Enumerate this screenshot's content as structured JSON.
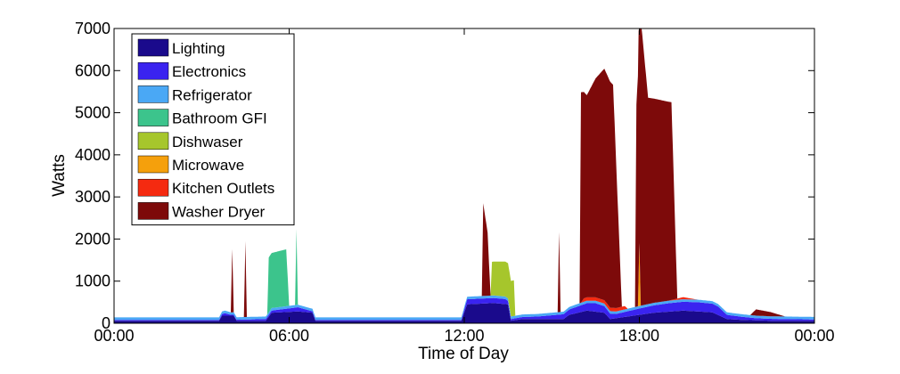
{
  "chart_data": {
    "type": "area",
    "stacked": true,
    "title": "",
    "xlabel": "Time of Day",
    "ylabel": "Watts",
    "x_unit": "hours",
    "xlim": [
      0,
      24
    ],
    "ylim": [
      0,
      7000
    ],
    "x_ticks": [
      {
        "value": 0,
        "label": "00:00"
      },
      {
        "value": 6,
        "label": "06:00"
      },
      {
        "value": 12,
        "label": "12:00"
      },
      {
        "value": 18,
        "label": "18:00"
      },
      {
        "value": 24,
        "label": "00:00"
      }
    ],
    "y_ticks": [
      0,
      1000,
      2000,
      3000,
      4000,
      5000,
      6000,
      7000
    ],
    "grid": false,
    "legend_position": "top-left",
    "series": [
      {
        "name": "Lighting",
        "color": "#1a0a8c",
        "points": [
          [
            0,
            60
          ],
          [
            3.6,
            60
          ],
          [
            3.7,
            180
          ],
          [
            4.1,
            180
          ],
          [
            4.2,
            60
          ],
          [
            5.2,
            60
          ],
          [
            5.4,
            250
          ],
          [
            6.3,
            280
          ],
          [
            6.8,
            250
          ],
          [
            6.9,
            60
          ],
          [
            11.0,
            60
          ],
          [
            11.9,
            60
          ],
          [
            12.1,
            450
          ],
          [
            13.0,
            480
          ],
          [
            13.5,
            450
          ],
          [
            13.6,
            60
          ],
          [
            14.0,
            100
          ],
          [
            15.4,
            100
          ],
          [
            15.6,
            200
          ],
          [
            16.2,
            300
          ],
          [
            16.8,
            250
          ],
          [
            17.0,
            100
          ],
          [
            17.5,
            150
          ],
          [
            18.5,
            250
          ],
          [
            19.5,
            300
          ],
          [
            20.5,
            260
          ],
          [
            21.0,
            100
          ],
          [
            21.5,
            80
          ],
          [
            22.5,
            60
          ],
          [
            24,
            60
          ]
        ]
      },
      {
        "name": "Electronics",
        "color": "#3a23f0",
        "points": [
          [
            0,
            20
          ],
          [
            3.6,
            20
          ],
          [
            3.8,
            60
          ],
          [
            4.0,
            20
          ],
          [
            5.2,
            40
          ],
          [
            6.3,
            100
          ],
          [
            6.9,
            20
          ],
          [
            11.9,
            20
          ],
          [
            12.1,
            120
          ],
          [
            13.4,
            120
          ],
          [
            13.6,
            40
          ],
          [
            14.5,
            60
          ],
          [
            15.5,
            120
          ],
          [
            16.5,
            200
          ],
          [
            17.2,
            100
          ],
          [
            18.0,
            150
          ],
          [
            19.0,
            200
          ],
          [
            20.0,
            220
          ],
          [
            20.7,
            200
          ],
          [
            21.0,
            100
          ],
          [
            22.0,
            50
          ],
          [
            24,
            30
          ]
        ]
      },
      {
        "name": "Refrigerator",
        "color": "#4aa8f5",
        "points": [
          [
            0,
            60
          ],
          [
            1,
            60
          ],
          [
            2,
            60
          ],
          [
            3,
            60
          ],
          [
            4,
            60
          ],
          [
            5,
            60
          ],
          [
            6,
            60
          ],
          [
            7,
            60
          ],
          [
            8,
            60
          ],
          [
            9,
            60
          ],
          [
            10,
            60
          ],
          [
            11,
            60
          ],
          [
            12,
            60
          ],
          [
            13,
            60
          ],
          [
            14,
            60
          ],
          [
            15,
            60
          ],
          [
            16,
            60
          ],
          [
            17,
            60
          ],
          [
            18,
            60
          ],
          [
            19,
            60
          ],
          [
            20,
            60
          ],
          [
            21,
            60
          ],
          [
            22,
            60
          ],
          [
            23,
            60
          ],
          [
            24,
            60
          ]
        ]
      },
      {
        "name": "Bathroom GFI",
        "color": "#3cc48c",
        "points": [
          [
            0,
            0
          ],
          [
            5.25,
            0
          ],
          [
            5.3,
            1300
          ],
          [
            5.9,
            1350
          ],
          [
            6.0,
            0
          ],
          [
            6.2,
            0
          ],
          [
            6.25,
            1800
          ],
          [
            6.3,
            0
          ],
          [
            24,
            0
          ]
        ]
      },
      {
        "name": "Dishwaser",
        "color": "#a6c62c",
        "points": [
          [
            0,
            0
          ],
          [
            12.9,
            0
          ],
          [
            12.95,
            800
          ],
          [
            13.7,
            850
          ],
          [
            13.75,
            0
          ],
          [
            24,
            0
          ]
        ]
      },
      {
        "name": "Microwave",
        "color": "#f5a00c",
        "points": [
          [
            0,
            0
          ],
          [
            17.95,
            0
          ],
          [
            18.0,
            1500
          ],
          [
            18.05,
            0
          ],
          [
            24,
            0
          ]
        ]
      },
      {
        "name": "Kitchen Outlets",
        "color": "#f52a10",
        "points": [
          [
            0,
            0
          ],
          [
            16.0,
            0
          ],
          [
            16.1,
            80
          ],
          [
            17.5,
            80
          ],
          [
            17.6,
            0
          ],
          [
            19.0,
            0
          ],
          [
            19.5,
            50
          ],
          [
            20,
            0
          ],
          [
            24,
            0
          ]
        ]
      },
      {
        "name": "Washer Dryer",
        "color": "#7d0a0a",
        "points": [
          [
            0,
            0
          ],
          [
            4.0,
            0
          ],
          [
            4.05,
            1500
          ],
          [
            4.1,
            0
          ],
          [
            4.45,
            0
          ],
          [
            4.5,
            1800
          ],
          [
            4.55,
            0
          ],
          [
            12.6,
            0
          ],
          [
            12.65,
            2200
          ],
          [
            12.8,
            1500
          ],
          [
            12.9,
            0
          ],
          [
            15.2,
            0
          ],
          [
            15.25,
            1900
          ],
          [
            15.3,
            0
          ],
          [
            15.95,
            0
          ],
          [
            16.0,
            5000
          ],
          [
            16.2,
            4800
          ],
          [
            16.5,
            5200
          ],
          [
            16.8,
            5500
          ],
          [
            17.1,
            5300
          ],
          [
            17.4,
            0
          ],
          [
            17.85,
            0
          ],
          [
            17.9,
            4800
          ],
          [
            18.05,
            6800
          ],
          [
            18.3,
            4900
          ],
          [
            18.7,
            4800
          ],
          [
            19.1,
            4700
          ],
          [
            19.3,
            0
          ],
          [
            21.8,
            0
          ],
          [
            22.0,
            150
          ],
          [
            22.5,
            100
          ],
          [
            23.0,
            0
          ],
          [
            24,
            0
          ]
        ]
      }
    ]
  }
}
